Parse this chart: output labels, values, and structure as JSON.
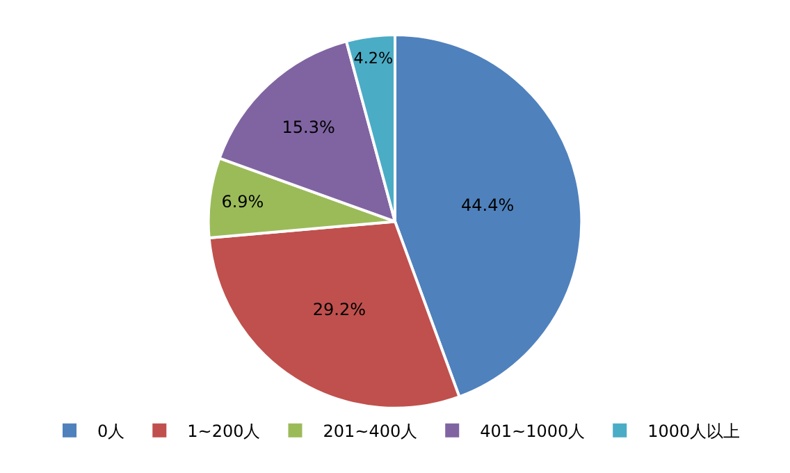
{
  "chart_data": {
    "type": "pie",
    "categories": [
      "0人",
      "1~200人",
      "201~400人",
      "401~1000人",
      "1000人以上"
    ],
    "values": [
      44.4,
      29.2,
      6.9,
      15.3,
      4.2
    ],
    "colors": [
      "#4f81bd",
      "#c0504d",
      "#9bbb59",
      "#8064a2",
      "#4bacc6"
    ],
    "value_labels": [
      "44.4%",
      "29.2%",
      "6.9%",
      "15.3%",
      "4.2%"
    ],
    "legend": "bottom"
  }
}
